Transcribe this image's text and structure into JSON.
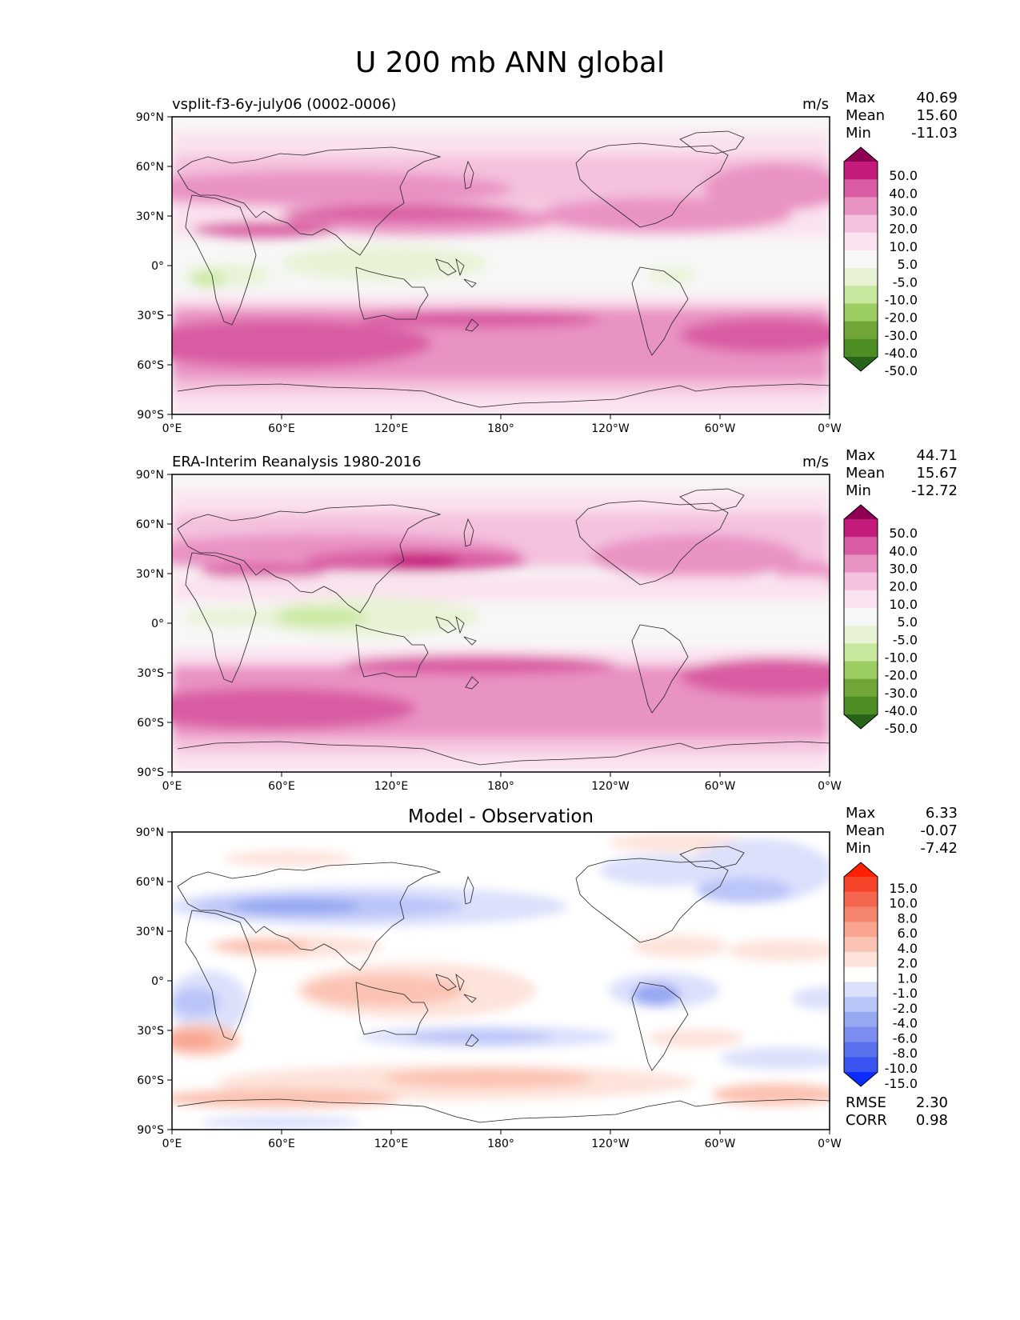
{
  "title": "U 200 mb ANN global",
  "x_ticks": [
    "0°E",
    "60°E",
    "120°E",
    "180°",
    "120°W",
    "60°W",
    "0°W"
  ],
  "y_ticks": [
    "90°N",
    "60°N",
    "30°N",
    "0°",
    "30°S",
    "60°S",
    "90°S"
  ],
  "panels": [
    {
      "id": "test",
      "title": "vsplit-f3-6y-july06 (0002-0006)",
      "units": "m/s",
      "stats": {
        "max_label": "Max",
        "max": "40.69",
        "mean_label": "Mean",
        "mean": "15.60",
        "min_label": "Min",
        "min": "-11.03"
      },
      "colorbar": {
        "labels": [
          "50.0",
          "40.0",
          "30.0",
          "20.0",
          "10.0",
          "5.0",
          "-5.0",
          "-10.0",
          "-20.0",
          "-30.0",
          "-40.0",
          "-50.0"
        ],
        "colors": [
          "#8e0152",
          "#c51b7d",
          "#d95ba3",
          "#e993c3",
          "#f4c1de",
          "#fbe2f0",
          "#f7f7f7",
          "#e8f3d6",
          "#c7e89e",
          "#9ccd62",
          "#6fa637",
          "#4d8e24",
          "#276419"
        ]
      }
    },
    {
      "id": "reference",
      "title": "ERA-Interim Reanalysis 1980-2016",
      "units": "m/s",
      "stats": {
        "max_label": "Max",
        "max": "44.71",
        "mean_label": "Mean",
        "mean": "15.67",
        "min_label": "Min",
        "min": "-12.72"
      },
      "colorbar": {
        "labels": [
          "50.0",
          "40.0",
          "30.0",
          "20.0",
          "10.0",
          "5.0",
          "-5.0",
          "-10.0",
          "-20.0",
          "-30.0",
          "-40.0",
          "-50.0"
        ],
        "colors": [
          "#8e0152",
          "#c51b7d",
          "#d95ba3",
          "#e993c3",
          "#f4c1de",
          "#fbe2f0",
          "#f7f7f7",
          "#e8f3d6",
          "#c7e89e",
          "#9ccd62",
          "#6fa637",
          "#4d8e24",
          "#276419"
        ]
      }
    },
    {
      "id": "diff",
      "title": "Model - Observation",
      "units": "",
      "stats": {
        "max_label": "Max",
        "max": "6.33",
        "mean_label": "Mean",
        "mean": "-0.07",
        "min_label": "Min",
        "min": "-7.42"
      },
      "colorbar": {
        "labels": [
          "15.0",
          "10.0",
          "8.0",
          "6.0",
          "4.0",
          "2.0",
          "1.0",
          "-1.0",
          "-2.0",
          "-4.0",
          "-6.0",
          "-8.0",
          "-10.0",
          "-15.0"
        ],
        "colors": [
          "#ff2000",
          "#f5442a",
          "#f46650",
          "#f5846f",
          "#f8a48f",
          "#fbc3b3",
          "#fde3da",
          "#ffffff",
          "#dbe0fb",
          "#bac5f8",
          "#97a8f3",
          "#7b8ef0",
          "#5a72ee",
          "#3a55f2",
          "#0c2cff"
        ]
      },
      "metrics": {
        "rmse_label": "RMSE",
        "rmse": "2.30",
        "corr_label": "CORR",
        "corr": "0.98"
      }
    }
  ]
}
